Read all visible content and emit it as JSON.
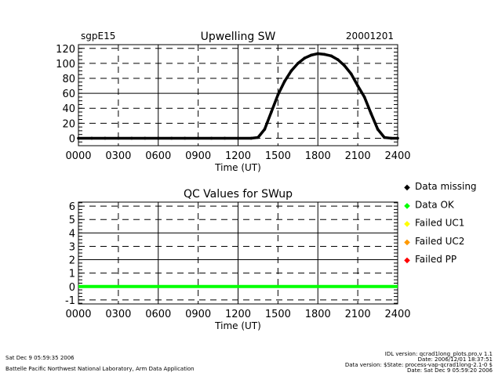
{
  "chart_data": [
    {
      "type": "line",
      "title": "Upwelling SW",
      "left_label": "sgpE15",
      "right_label": "20001201",
      "xlabel": "Time (UT)",
      "ylabel": "",
      "xticks": [
        "0000",
        "0300",
        "0600",
        "0900",
        "1200",
        "1500",
        "1800",
        "2100",
        "2400"
      ],
      "yticks": [
        "0",
        "20",
        "40",
        "60",
        "80",
        "100",
        "120"
      ],
      "xlim": [
        "0000",
        "2400"
      ],
      "ylim": [
        -10,
        125
      ],
      "grid": true,
      "series": [
        {
          "color": "#000000",
          "x": [
            "0000",
            "0100",
            "0200",
            "0300",
            "0400",
            "0500",
            "0600",
            "0700",
            "0800",
            "0900",
            "1000",
            "1100",
            "1200",
            "1300",
            "1330",
            "1400",
            "1430",
            "1500",
            "1530",
            "1600",
            "1630",
            "1700",
            "1730",
            "1800",
            "1830",
            "1900",
            "1930",
            "2000",
            "2030",
            "2100",
            "2130",
            "2200",
            "2230",
            "2300",
            "2330",
            "2400"
          ],
          "y": [
            0,
            0,
            0,
            0,
            0,
            0,
            0,
            0,
            0,
            0,
            0,
            0,
            0,
            0,
            1,
            12,
            35,
            58,
            76,
            90,
            100,
            107,
            111,
            113,
            112,
            110,
            105,
            97,
            86,
            70,
            55,
            33,
            12,
            1,
            0,
            0
          ]
        }
      ]
    },
    {
      "type": "line",
      "title": "QC Values for SWup",
      "xlabel": "Time (UT)",
      "xticks": [
        "0000",
        "0300",
        "0600",
        "0900",
        "1200",
        "1500",
        "1800",
        "2100",
        "2400"
      ],
      "yticks": [
        "-1",
        "0",
        "1",
        "2",
        "3",
        "4",
        "5",
        "6"
      ],
      "xlim": [
        "0000",
        "2400"
      ],
      "ylim": [
        -1.3,
        6.3
      ],
      "grid": true,
      "series": [
        {
          "color": "#00ff00",
          "x": [
            "0000",
            "2400"
          ],
          "y": [
            0,
            0
          ]
        }
      ],
      "legend": [
        {
          "label": "Data missing",
          "color": "#000000"
        },
        {
          "label": "Data OK",
          "color": "#00ff00"
        },
        {
          "label": "Failed UC1",
          "color": "#ffff00"
        },
        {
          "label": "Failed UC2",
          "color": "#ff9900"
        },
        {
          "label": "Failed PP",
          "color": "#ff0000"
        }
      ],
      "legend_position": "right"
    }
  ],
  "footer": {
    "date": "Sat Dec  9 05:59:35 2006",
    "org": "Battelle Pacific Northwest National Laboratory, Arm Data Application",
    "idl_version": "IDL version: qcrad1long_plots.pro,v 1.1",
    "idl_date": "Date: 2006/12/01 18:37:51",
    "data_version": "Data version: $State: process-vap-qcrad1long-2.1-0 $",
    "data_date": "Date: Sat Dec  9 05:59:20 2006"
  }
}
